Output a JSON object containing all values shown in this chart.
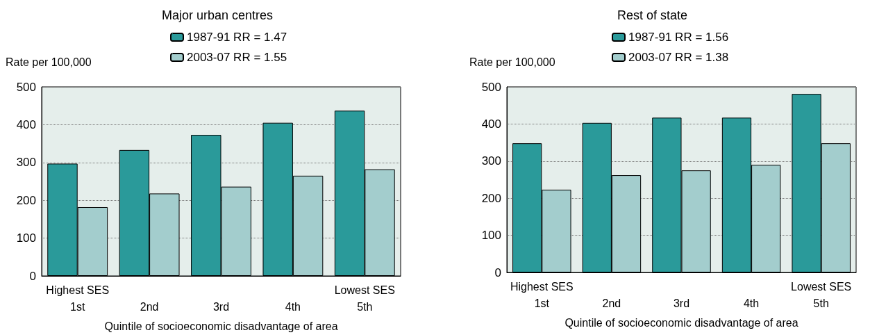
{
  "chart_data": [
    {
      "type": "bar",
      "title": "Major urban centres",
      "xlabel": "Quintile of socioeconomic disadvantage of area",
      "ylabel": "Rate per 100,000",
      "categories": [
        "1st",
        "2nd",
        "3rd",
        "4th",
        "5th"
      ],
      "series": [
        {
          "name": "1987-91 RR = 1.47",
          "color": "#2a9a9a",
          "values": [
            297,
            333,
            373,
            405,
            437
          ]
        },
        {
          "name": "2003-07 RR = 1.55",
          "color": "#a3cdcd",
          "values": [
            182,
            218,
            236,
            265,
            282
          ]
        }
      ],
      "ylim": [
        0,
        500
      ],
      "yticks": [
        0,
        100,
        200,
        300,
        400,
        500
      ],
      "grid": "y",
      "legend": "top",
      "annotations": [
        "Highest SES",
        "Lowest SES"
      ]
    },
    {
      "type": "bar",
      "title": "Rest of state",
      "xlabel": "Quintile of socioeconomic disadvantage of area",
      "ylabel": "Rate per 100,000",
      "categories": [
        "1st",
        "2nd",
        "3rd",
        "4th",
        "5th"
      ],
      "series": [
        {
          "name": "1987-91 RR = 1.56",
          "color": "#2a9a9a",
          "values": [
            348,
            403,
            417,
            417,
            481
          ]
        },
        {
          "name": "2003-07 RR = 1.38",
          "color": "#a3cdcd",
          "values": [
            223,
            262,
            275,
            290,
            348
          ]
        }
      ],
      "ylim": [
        0,
        500
      ],
      "yticks": [
        0,
        100,
        200,
        300,
        400,
        500
      ],
      "grid": "y",
      "legend": "top",
      "annotations": [
        "Highest SES",
        "Lowest SES"
      ]
    }
  ]
}
